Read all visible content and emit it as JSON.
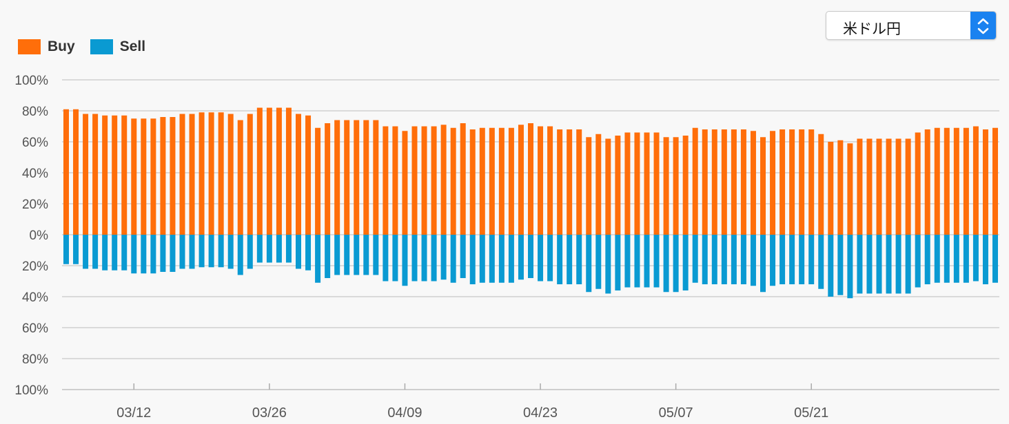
{
  "selector": {
    "value": "米ドル円"
  },
  "chart_data": {
    "type": "bar",
    "legend": [
      {
        "name": "Buy",
        "color": "#ff6e0a"
      },
      {
        "name": "Sell",
        "color": "#0a9ad2"
      }
    ],
    "legend_position": "top-left",
    "grid": true,
    "y_ticks": [
      "100%",
      "80%",
      "60%",
      "40%",
      "20%",
      "0%",
      "20%",
      "40%",
      "60%",
      "80%",
      "100%"
    ],
    "ylim": [
      -100,
      100
    ],
    "x_ticks": [
      {
        "label": "03/12",
        "index": 7
      },
      {
        "label": "03/26",
        "index": 21
      },
      {
        "label": "04/09",
        "index": 35
      },
      {
        "label": "04/23",
        "index": 49
      },
      {
        "label": "05/07",
        "index": 63
      },
      {
        "label": "05/21",
        "index": 77
      }
    ],
    "series": [
      {
        "name": "Buy",
        "values": [
          81,
          81,
          78,
          78,
          77,
          77,
          77,
          75,
          75,
          75,
          76,
          76,
          78,
          78,
          79,
          79,
          79,
          78,
          74,
          78,
          82,
          82,
          82,
          82,
          78,
          77,
          69,
          72,
          74,
          74,
          74,
          74,
          74,
          70,
          70,
          67,
          70,
          70,
          70,
          71,
          69,
          72,
          68,
          69,
          69,
          69,
          69,
          71,
          72,
          70,
          70,
          68,
          68,
          68,
          63,
          65,
          62,
          64,
          66,
          66,
          66,
          66,
          63,
          63,
          64,
          69,
          68,
          68,
          68,
          68,
          68,
          67,
          63,
          67,
          68,
          68,
          68,
          68,
          65,
          60,
          61,
          59,
          62,
          62,
          62,
          62,
          62,
          62,
          66,
          68,
          69,
          69,
          69,
          69,
          70,
          68,
          69
        ]
      },
      {
        "name": "Sell",
        "values": [
          19,
          19,
          22,
          22,
          23,
          23,
          23,
          25,
          25,
          25,
          24,
          24,
          22,
          22,
          21,
          21,
          21,
          22,
          26,
          22,
          18,
          18,
          18,
          18,
          22,
          23,
          31,
          28,
          26,
          26,
          26,
          26,
          26,
          30,
          30,
          33,
          30,
          30,
          30,
          29,
          31,
          28,
          32,
          31,
          31,
          31,
          31,
          29,
          28,
          30,
          30,
          32,
          32,
          32,
          37,
          35,
          38,
          36,
          34,
          34,
          34,
          34,
          37,
          37,
          36,
          31,
          32,
          32,
          32,
          32,
          32,
          33,
          37,
          33,
          32,
          32,
          32,
          32,
          35,
          40,
          39,
          41,
          38,
          38,
          38,
          38,
          38,
          38,
          34,
          32,
          31,
          31,
          31,
          31,
          30,
          32,
          31
        ]
      }
    ]
  }
}
